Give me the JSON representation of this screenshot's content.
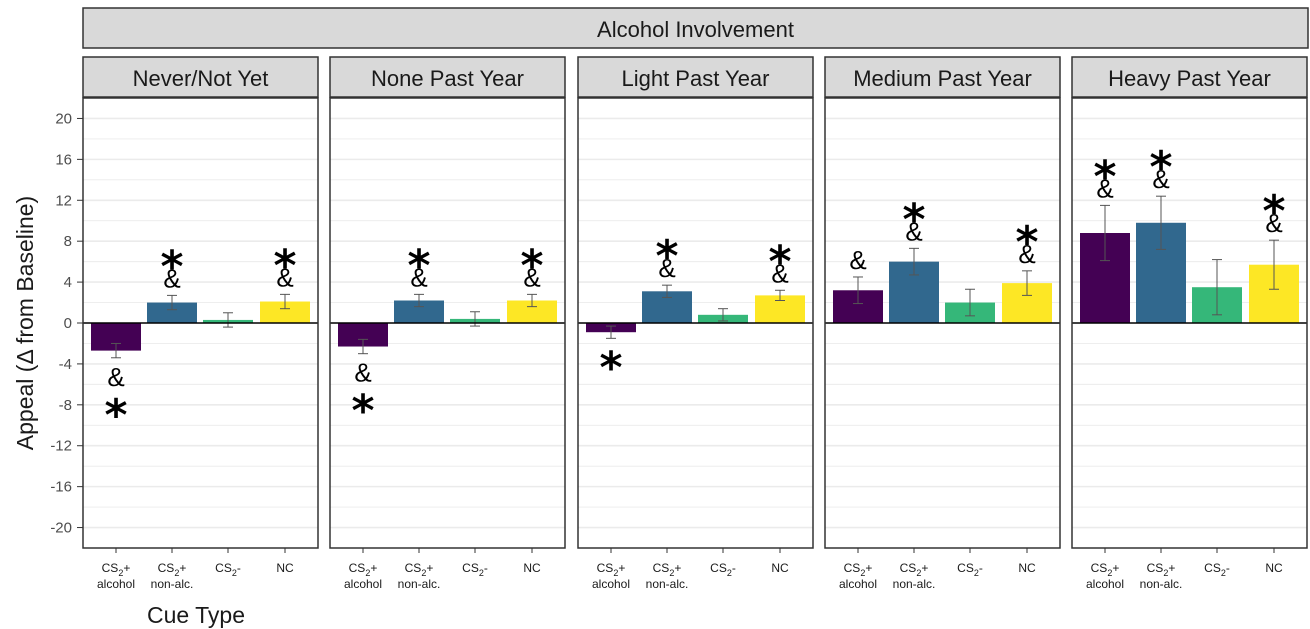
{
  "chart_data": {
    "type": "bar",
    "title": "",
    "facet_title": "Alcohol Involvement",
    "ylabel": "Appeal (Δ from Baseline)",
    "xlabel": "Cue Type",
    "ylim": [
      -22,
      22
    ],
    "yticks": [
      20,
      16,
      12,
      8,
      4,
      0,
      -4,
      -8,
      -12,
      -16,
      -20
    ],
    "grid": true,
    "categories": [
      {
        "line1": "CS",
        "sub": "2",
        "tail": "+",
        "line2": "alcohol"
      },
      {
        "line1": "CS",
        "sub": "2",
        "tail": "+",
        "line2": "non-alc."
      },
      {
        "line1": "CS",
        "sub": "2",
        "tail": "-",
        "line2": ""
      },
      {
        "line1": "NC",
        "sub": "",
        "tail": "",
        "line2": ""
      }
    ],
    "colors": [
      "#440154",
      "#31688e",
      "#35b779",
      "#fde725"
    ],
    "panels": [
      {
        "name": "Never/Not Yet",
        "values": [
          -2.7,
          2.0,
          0.3,
          2.1
        ],
        "errors": [
          0.7,
          0.7,
          0.7,
          0.7
        ],
        "marks": [
          {
            "star": "*",
            "amp": "&"
          },
          {
            "star": "*",
            "amp": "&"
          },
          {
            "star": "",
            "amp": ""
          },
          {
            "star": "*",
            "amp": "&"
          }
        ]
      },
      {
        "name": "None Past Year",
        "values": [
          -2.3,
          2.2,
          0.4,
          2.2
        ],
        "errors": [
          0.7,
          0.6,
          0.7,
          0.6
        ],
        "marks": [
          {
            "star": "*",
            "amp": "&"
          },
          {
            "star": "*",
            "amp": "&"
          },
          {
            "star": "",
            "amp": ""
          },
          {
            "star": "*",
            "amp": "&"
          }
        ]
      },
      {
        "name": "Light Past Year",
        "values": [
          -0.9,
          3.1,
          0.8,
          2.7
        ],
        "errors": [
          0.6,
          0.6,
          0.6,
          0.5
        ],
        "marks": [
          {
            "star": "*",
            "amp": ""
          },
          {
            "star": "*",
            "amp": "&"
          },
          {
            "star": "",
            "amp": ""
          },
          {
            "star": "*",
            "amp": "&"
          }
        ]
      },
      {
        "name": "Medium Past Year",
        "values": [
          3.2,
          6.0,
          2.0,
          3.9
        ],
        "errors": [
          1.3,
          1.3,
          1.3,
          1.2
        ],
        "marks": [
          {
            "star": "",
            "amp": "&"
          },
          {
            "star": "*",
            "amp": "&"
          },
          {
            "star": "",
            "amp": ""
          },
          {
            "star": "*",
            "amp": "&"
          }
        ]
      },
      {
        "name": "Heavy Past Year",
        "values": [
          8.8,
          9.8,
          3.5,
          5.7
        ],
        "errors": [
          2.7,
          2.6,
          2.7,
          2.4
        ],
        "marks": [
          {
            "star": "*",
            "amp": "&"
          },
          {
            "star": "*",
            "amp": "&"
          },
          {
            "star": "",
            "amp": ""
          },
          {
            "star": "*",
            "amp": "&"
          }
        ]
      }
    ]
  }
}
